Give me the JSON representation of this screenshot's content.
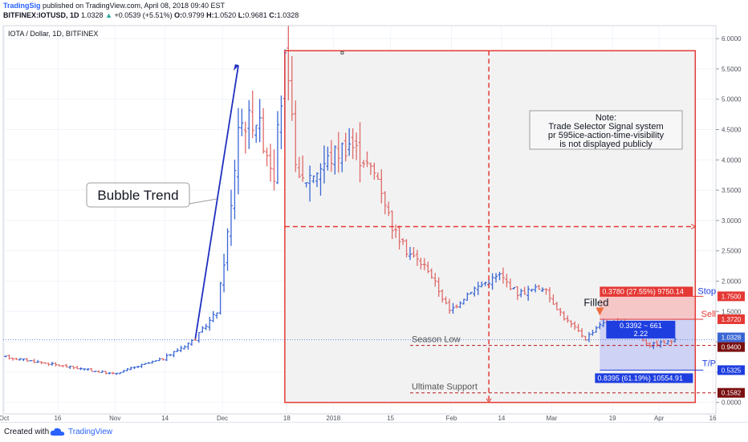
{
  "header": {
    "user": "TradingSig",
    "published": "published on TradingView.com, April 08, 2018 09:40 EST",
    "symbol": "BITFINEX:IOTUSD, 1D",
    "last": "1.0328",
    "change": "+0.0539 (+5.51%)",
    "o_label": "O:",
    "o": "0.9799",
    "h_label": "H:",
    "h": "1.0520",
    "l_label": "L:",
    "l": "0.9681",
    "c_label": "C:",
    "c": "1.0328"
  },
  "footer": {
    "created": "Created with",
    "brand": "TradingView"
  },
  "colors": {
    "up": "#3a66d4",
    "down": "#e06a6a",
    "box": "#e53935",
    "trend": "#1f2fbf",
    "stop_fill": "#f7c0c0",
    "target_fill": "#c8ccf5",
    "target_label": "#1e3ee0",
    "price_label": "#e53935"
  },
  "chart_data": {
    "type": "candlestick",
    "title": "IOTA / Dollar, 1D, BITFINEX",
    "y_range": [
      -0.15,
      6.2
    ],
    "y_ticks": [
      "6.0000",
      "5.5000",
      "5.0000",
      "4.5000",
      "4.0000",
      "3.5000",
      "3.0000",
      "2.5000",
      "2.0000",
      "1.5000",
      "1.0000",
      "0.5000",
      "0.0000"
    ],
    "x_ticks": [
      "Oct",
      "16",
      "Nov",
      "14",
      "Dec",
      "18",
      "2018",
      "15",
      "Feb",
      "14",
      "Mar",
      "19",
      "Apr",
      "16"
    ],
    "series": [
      {
        "name": "",
        "segment": "oct-nov",
        "from": 0.75,
        "to": 0.47
      },
      {
        "name": "",
        "segment": "nov-dec",
        "from": 0.47,
        "to": 1.35
      },
      {
        "name": "",
        "segment": "dec-peak",
        "from": 1.35,
        "to": 5.6
      },
      {
        "name": "",
        "segment": "peak-jan",
        "from": 5.6,
        "to": 3.3
      },
      {
        "name": "",
        "segment": "jan-feb",
        "from": 3.3,
        "to": 1.3
      },
      {
        "name": "",
        "segment": "feb-apr",
        "from": 1.3,
        "to": 1.03
      }
    ],
    "annotations": {
      "bubble": "Bubble Trend",
      "note_title": "Note:",
      "note_line1": "Trade Selector Signal system",
      "note_line2": "pr 595ice-action-time-visibility",
      "note_line3": "is not displayed publicly",
      "season_low": "Season Low",
      "ultimate_support": "Ultimate Support",
      "filled": "Filled",
      "stop_label": "Stop",
      "sell_label": "Sell",
      "tp_label": "T/P",
      "stop_box": "0.3780 (27.55%) 9750.14",
      "mid_box_1": "0.3392 ~ 661",
      "mid_box_2": "2.22",
      "target_box": "0.8395 (61.19%) 10554.91"
    },
    "levels": {
      "stop": 1.75,
      "entry": 1.372,
      "current": 1.0328,
      "season_low": 0.94,
      "target": 0.5325,
      "support": 0.1582,
      "mid": 2.9
    },
    "price_labels": [
      "1.7500",
      "1.3720",
      "1.0328",
      "0.9400",
      "0.5325",
      "0.1582"
    ]
  }
}
